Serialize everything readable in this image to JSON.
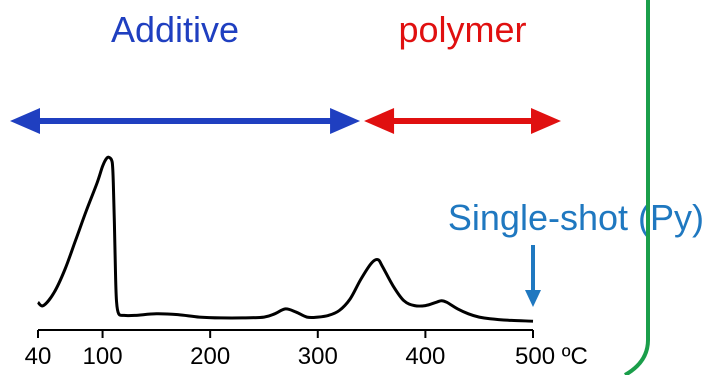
{
  "chart_data": {
    "type": "line",
    "title": "",
    "xlabel": "",
    "ylabel": "",
    "x_unit": "ºC",
    "xlim": [
      40,
      500
    ],
    "ylim": [
      0,
      100
    ],
    "x_ticks": [
      40,
      100,
      200,
      300,
      400,
      500
    ],
    "x_tick_labels": [
      "40",
      "100",
      "200",
      "300",
      "400",
      "500 ºC"
    ],
    "grid": false,
    "legend": "none",
    "series": [
      {
        "color": "#000000",
        "x": [
          40,
          45,
          55,
          65,
          75,
          85,
          95,
          100,
          104,
          107,
          109,
          110,
          111,
          112,
          113,
          115,
          120,
          130,
          150,
          170,
          190,
          210,
          230,
          250,
          260,
          270,
          280,
          290,
          300,
          310,
          320,
          330,
          340,
          350,
          356,
          360,
          370,
          380,
          390,
          400,
          410,
          415,
          420,
          430,
          440,
          450,
          460,
          480,
          500
        ],
        "y": [
          12,
          10,
          18,
          32,
          50,
          68,
          85,
          95,
          100,
          100,
          97,
          85,
          60,
          30,
          12,
          5,
          4,
          4,
          5,
          4.5,
          3,
          2.5,
          2.5,
          3,
          5,
          8,
          6,
          3,
          3,
          4,
          7,
          14,
          26,
          36,
          38,
          34,
          22,
          13,
          10,
          10,
          12,
          13,
          12,
          8,
          5,
          3,
          2,
          1,
          0.5
        ]
      }
    ],
    "regions": [
      {
        "label": "Additive",
        "x": [
          40,
          330
        ],
        "color": "#1f3fc0"
      },
      {
        "label": "polymer",
        "x": [
          330,
          500
        ],
        "color": "#e01010"
      }
    ],
    "annotations": [
      {
        "text": "Single-shot (Py)",
        "x": 500,
        "color": "#1f78c0"
      }
    ],
    "divider_color": "#1a9e4a"
  }
}
